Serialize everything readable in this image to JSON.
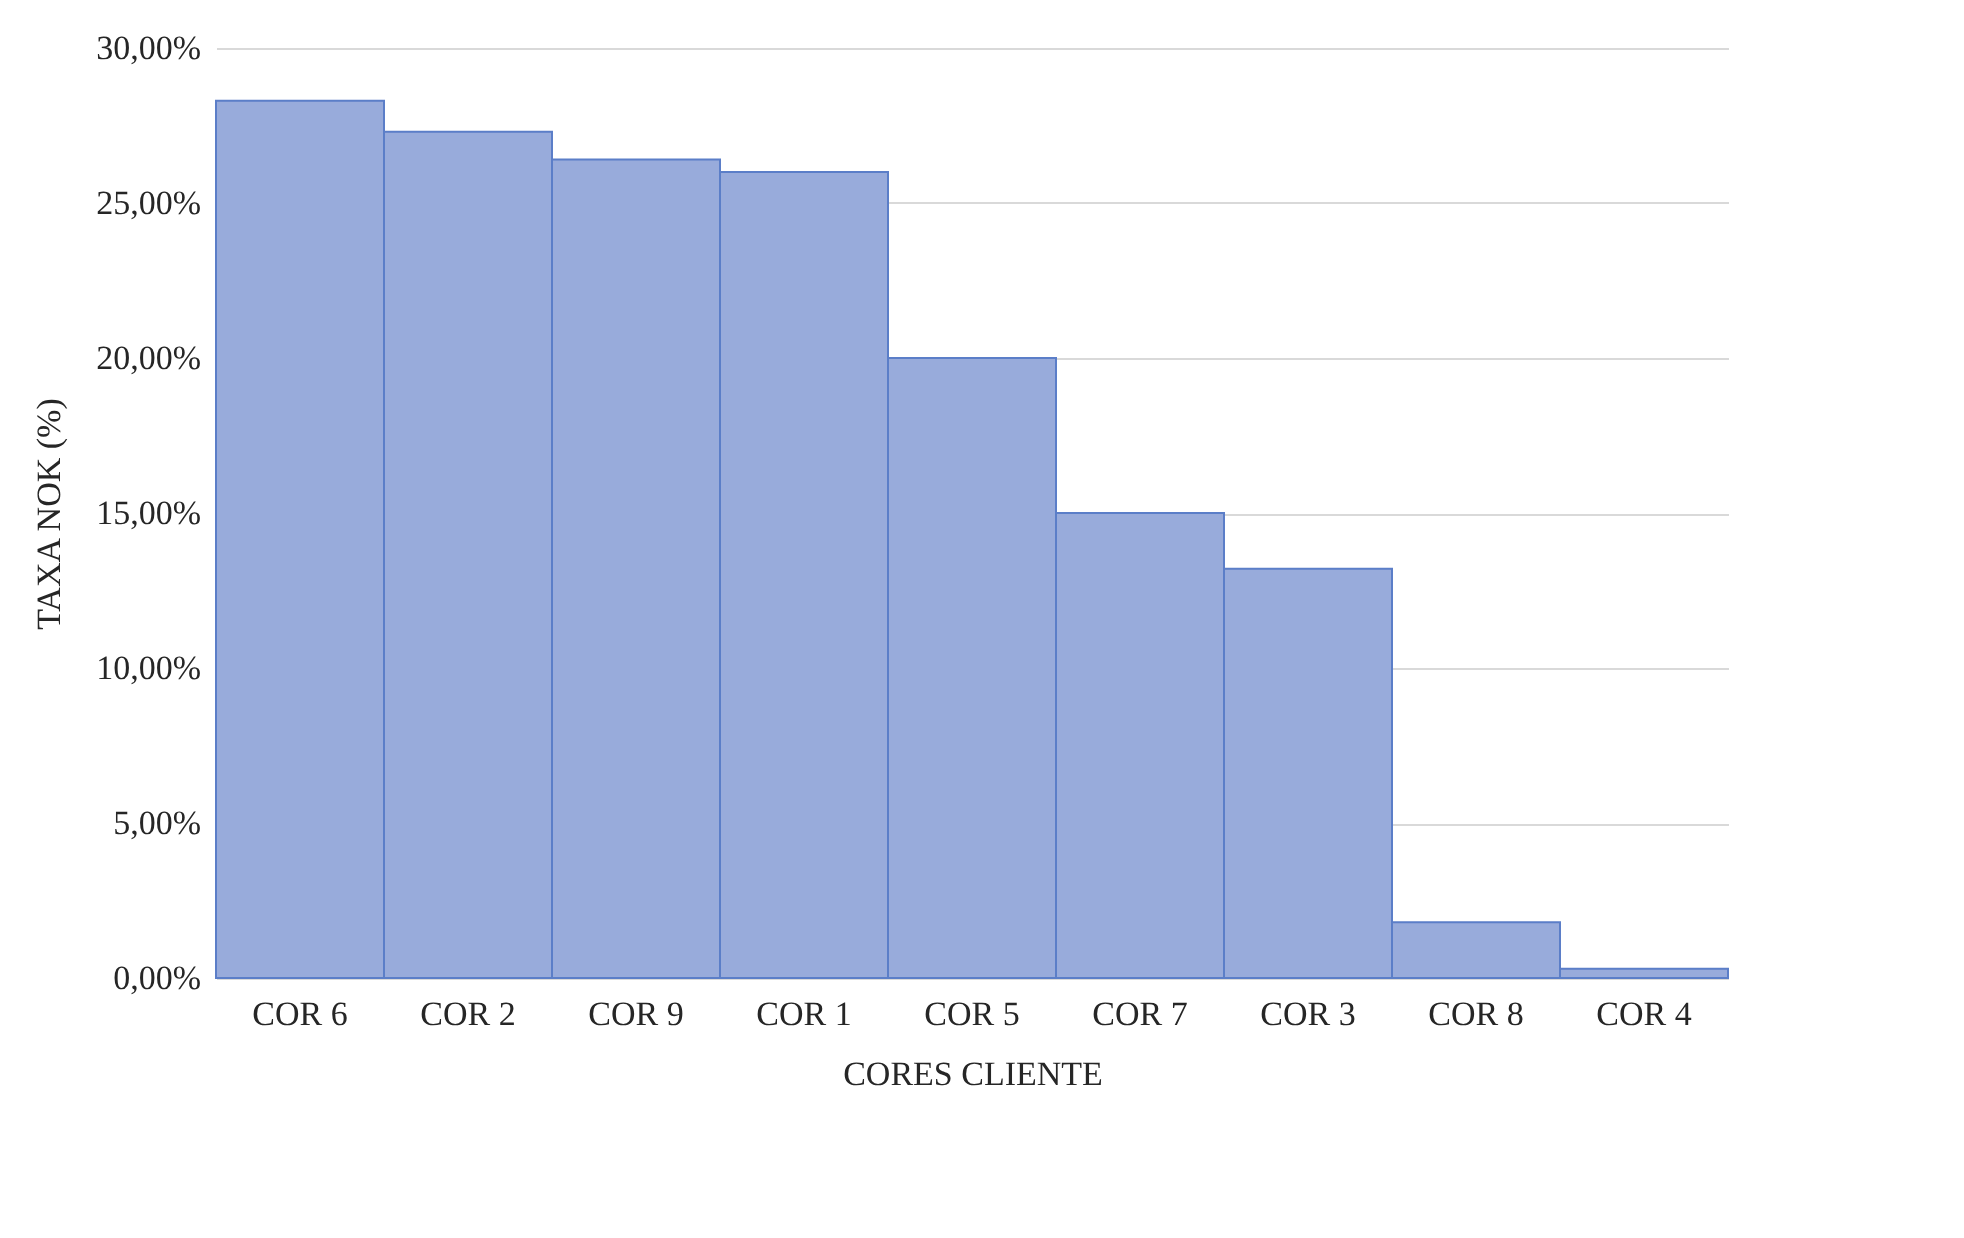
{
  "chart_data": {
    "type": "bar",
    "xlabel": "CORES CLIENTE",
    "ylabel": "TAXA NOK (%)",
    "categories": [
      "COR 6",
      "COR 2",
      "COR 9",
      "COR 1",
      "COR 5",
      "COR 7",
      "COR 3",
      "COR 8",
      "COR 4"
    ],
    "values": [
      28.3,
      27.3,
      26.4,
      26.0,
      20.0,
      15.0,
      13.2,
      1.8,
      0.3
    ],
    "color": "#98abdb",
    "ylim": [
      0,
      30
    ],
    "yticks": [
      {
        "value": 0,
        "label": "0,00%"
      },
      {
        "value": 5,
        "label": "5,00%"
      },
      {
        "value": 10,
        "label": "10,00%"
      },
      {
        "value": 15,
        "label": "15,00%"
      },
      {
        "value": 20,
        "label": "20,00%"
      },
      {
        "value": 25,
        "label": "25,00%"
      },
      {
        "value": 30,
        "label": "30,00%"
      }
    ],
    "grid": "y"
  }
}
